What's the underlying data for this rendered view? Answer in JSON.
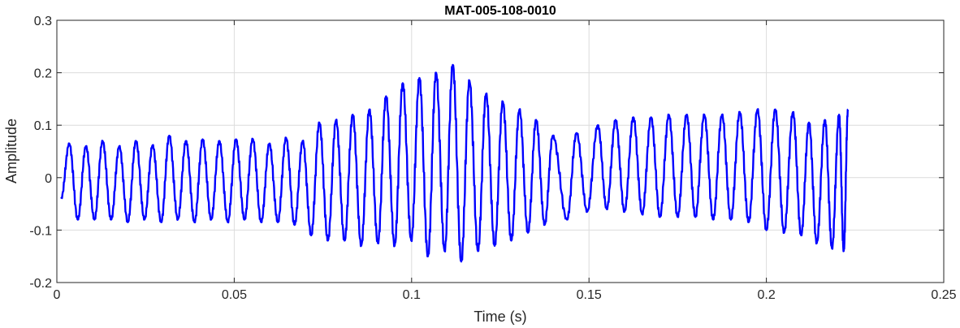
{
  "chart_data": {
    "type": "line",
    "title": "MAT-005-108-0010",
    "xlabel": "Time (s)",
    "ylabel": "Amplitude",
    "xlim": [
      0,
      0.25
    ],
    "ylim": [
      -0.2,
      0.3
    ],
    "xticks": [
      0,
      0.05,
      0.1,
      0.15,
      0.2,
      0.25
    ],
    "xtick_labels": [
      "0",
      "0.05",
      "0.1",
      "0.15",
      "0.2",
      "0.25"
    ],
    "yticks": [
      -0.2,
      -0.1,
      0,
      0.1,
      0.2,
      0.3
    ],
    "ytick_labels": [
      "-0.2",
      "-0.1",
      "0",
      "0.1",
      "0.2",
      "0.3"
    ],
    "grid": true,
    "legend": "none",
    "line_color": "#0000ff",
    "series": [
      {
        "values": {
          "peaks": [
            [
              0.0035,
              0.065
            ],
            [
              0.0082,
              0.06
            ],
            [
              0.0129,
              0.07
            ],
            [
              0.0176,
              0.06
            ],
            [
              0.0223,
              0.07
            ],
            [
              0.027,
              0.062
            ],
            [
              0.0317,
              0.08
            ],
            [
              0.0364,
              0.07
            ],
            [
              0.0411,
              0.073
            ],
            [
              0.0458,
              0.07
            ],
            [
              0.0505,
              0.073
            ],
            [
              0.0552,
              0.074
            ],
            [
              0.0599,
              0.065
            ],
            [
              0.0646,
              0.076
            ],
            [
              0.0693,
              0.07
            ],
            [
              0.074,
              0.105
            ],
            [
              0.0787,
              0.11
            ],
            [
              0.0834,
              0.12
            ],
            [
              0.0881,
              0.13
            ],
            [
              0.0928,
              0.155
            ],
            [
              0.0975,
              0.18
            ],
            [
              0.1022,
              0.19
            ],
            [
              0.1069,
              0.2
            ],
            [
              0.1116,
              0.215
            ],
            [
              0.1163,
              0.185
            ],
            [
              0.121,
              0.16
            ],
            [
              0.1257,
              0.145
            ],
            [
              0.1304,
              0.13
            ],
            [
              0.1351,
              0.11
            ],
            [
              0.1398,
              0.08
            ],
            [
              0.1465,
              0.085
            ],
            [
              0.1525,
              0.1
            ],
            [
              0.1575,
              0.11
            ],
            [
              0.1625,
              0.115
            ],
            [
              0.1675,
              0.115
            ],
            [
              0.1725,
              0.12
            ],
            [
              0.1775,
              0.12
            ],
            [
              0.1825,
              0.12
            ],
            [
              0.1875,
              0.12
            ],
            [
              0.1925,
              0.125
            ],
            [
              0.1975,
              0.13
            ],
            [
              0.2025,
              0.13
            ],
            [
              0.2075,
              0.125
            ],
            [
              0.212,
              0.105
            ],
            [
              0.2165,
              0.11
            ],
            [
              0.2205,
              0.12
            ],
            [
              0.223,
              0.13
            ]
          ],
          "troughs": [
            [
              0.0012,
              -0.04
            ],
            [
              0.0059,
              -0.08
            ],
            [
              0.0106,
              -0.08
            ],
            [
              0.0153,
              -0.08
            ],
            [
              0.02,
              -0.085
            ],
            [
              0.0247,
              -0.08
            ],
            [
              0.0294,
              -0.085
            ],
            [
              0.0341,
              -0.08
            ],
            [
              0.0388,
              -0.085
            ],
            [
              0.0435,
              -0.08
            ],
            [
              0.0482,
              -0.085
            ],
            [
              0.0529,
              -0.08
            ],
            [
              0.0576,
              -0.085
            ],
            [
              0.0623,
              -0.085
            ],
            [
              0.067,
              -0.09
            ],
            [
              0.0717,
              -0.11
            ],
            [
              0.0764,
              -0.12
            ],
            [
              0.0811,
              -0.12
            ],
            [
              0.0858,
              -0.13
            ],
            [
              0.0905,
              -0.125
            ],
            [
              0.0952,
              -0.13
            ],
            [
              0.0999,
              -0.12
            ],
            [
              0.1046,
              -0.15
            ],
            [
              0.1093,
              -0.14
            ],
            [
              0.114,
              -0.16
            ],
            [
              0.1187,
              -0.14
            ],
            [
              0.1234,
              -0.13
            ],
            [
              0.1281,
              -0.12
            ],
            [
              0.1328,
              -0.105
            ],
            [
              0.1375,
              -0.09
            ],
            [
              0.1438,
              -0.08
            ],
            [
              0.1495,
              -0.065
            ],
            [
              0.155,
              -0.06
            ],
            [
              0.16,
              -0.065
            ],
            [
              0.165,
              -0.07
            ],
            [
              0.17,
              -0.075
            ],
            [
              0.175,
              -0.075
            ],
            [
              0.18,
              -0.075
            ],
            [
              0.185,
              -0.08
            ],
            [
              0.19,
              -0.08
            ],
            [
              0.195,
              -0.085
            ],
            [
              0.2,
              -0.1
            ],
            [
              0.205,
              -0.105
            ],
            [
              0.2098,
              -0.11
            ],
            [
              0.2142,
              -0.125
            ],
            [
              0.2185,
              -0.135
            ],
            [
              0.2218,
              -0.14
            ]
          ]
        }
      }
    ]
  }
}
